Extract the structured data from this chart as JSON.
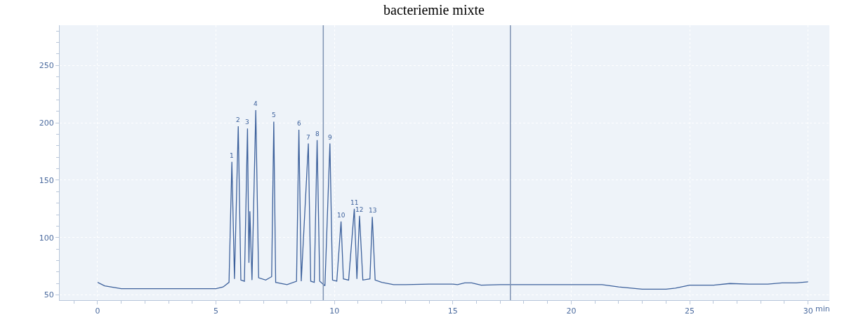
{
  "chart_data": {
    "type": "line",
    "title": "bacteriemie mixte",
    "xlabel": "min",
    "series": [
      {
        "color": "#3d619c",
        "x": [
          0,
          0.3,
          1,
          3,
          5,
          5.3,
          5.55,
          5.67,
          5.78,
          5.94,
          6.05,
          6.2,
          6.33,
          6.39,
          6.43,
          6.52,
          6.68,
          6.8,
          7.1,
          7.35,
          7.44,
          7.52,
          8.0,
          8.4,
          8.5,
          8.6,
          8.9,
          9.0,
          9.15,
          9.27,
          9.38,
          9.6,
          9.81,
          9.92,
          10.1,
          10.28,
          10.38,
          10.6,
          10.84,
          10.95,
          11.06,
          11.2,
          11.5,
          11.6,
          11.72,
          12.0,
          12.5,
          13,
          14,
          15,
          15.2,
          15.5,
          15.8,
          16.2,
          17,
          21.3,
          22,
          23,
          24,
          24.4,
          25,
          26,
          26.7,
          27.5,
          28.3,
          28.9,
          29.5,
          30
        ],
        "values": [
          61,
          58,
          55.5,
          55.5,
          55.5,
          57,
          61,
          166,
          64,
          197,
          63,
          62,
          195,
          78,
          123,
          63,
          211,
          65,
          63,
          66,
          201,
          61,
          59,
          62,
          194,
          62,
          182,
          62,
          61,
          185,
          62,
          58,
          182,
          63,
          62,
          114,
          64,
          63,
          125,
          64,
          119,
          63,
          64,
          118,
          63,
          61,
          59,
          59,
          59.5,
          59.5,
          59,
          60.5,
          60.5,
          58.5,
          59,
          59,
          57,
          55,
          55,
          56,
          58.5,
          58.5,
          60,
          59.5,
          59.5,
          60.5,
          60.5,
          61.5
        ]
      }
    ],
    "annotations": [
      {
        "text": "1",
        "x": 5.67,
        "y": 166
      },
      {
        "text": "2",
        "x": 5.94,
        "y": 197
      },
      {
        "text": "3",
        "x": 6.33,
        "y": 195
      },
      {
        "text": "4",
        "x": 6.68,
        "y": 211
      },
      {
        "text": "5",
        "x": 7.44,
        "y": 201
      },
      {
        "text": "6",
        "x": 8.5,
        "y": 194
      },
      {
        "text": "7",
        "x": 8.9,
        "y": 182
      },
      {
        "text": "8",
        "x": 9.27,
        "y": 185
      },
      {
        "text": "9",
        "x": 9.81,
        "y": 182
      },
      {
        "text": "10",
        "x": 10.28,
        "y": 114
      },
      {
        "text": "11",
        "x": 10.84,
        "y": 125
      },
      {
        "text": "12",
        "x": 11.06,
        "y": 119
      },
      {
        "text": "13",
        "x": 11.6,
        "y": 118
      }
    ],
    "ref_lines": [
      {
        "axis": "x",
        "value": 9.53,
        "color": "#7f93b3"
      },
      {
        "axis": "x",
        "value": 17.43,
        "color": "#7f93b3"
      }
    ],
    "xlim": [
      -1.6,
      30.9
    ],
    "xticks": [
      0,
      5,
      10,
      15,
      20,
      25,
      30
    ],
    "ylim": [
      45.5,
      285
    ],
    "yticks": [
      50,
      100,
      150,
      200,
      250
    ],
    "grid": true
  }
}
